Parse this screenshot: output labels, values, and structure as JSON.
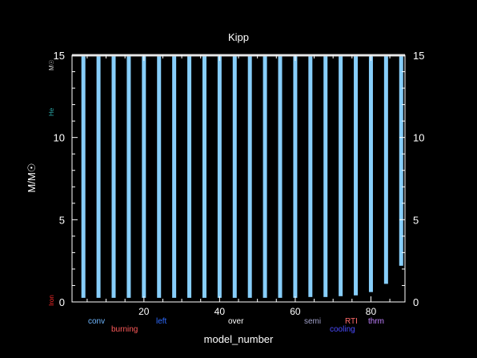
{
  "chart_data": {
    "type": "bar",
    "title": "Kipp",
    "xlabel": "model_number",
    "ylabel": "M/M☉",
    "xlim": [
      1,
      89
    ],
    "ylim": [
      0,
      15
    ],
    "x_ticks": [
      20,
      40,
      60,
      80
    ],
    "y_ticks": [
      0,
      5,
      10,
      15
    ],
    "x": [
      4,
      8,
      12,
      16,
      20,
      24,
      28,
      32,
      36,
      40,
      44,
      48,
      52,
      56,
      60,
      64,
      68,
      72,
      76,
      80,
      84,
      88
    ],
    "bottoms": [
      0.25,
      0.25,
      0.25,
      0.25,
      0.25,
      0.25,
      0.25,
      0.25,
      0.25,
      0.25,
      0.25,
      0.25,
      0.25,
      0.25,
      0.25,
      0.3,
      0.3,
      0.35,
      0.4,
      0.6,
      1.1,
      2.2
    ],
    "top": 15,
    "colors": {
      "bar": "#87CEFA",
      "mass_line": "#d0d0d0",
      "conv": "#6fb7ff",
      "burning": "#ff5a5a",
      "left": "#2e6bff",
      "over": "#ffffff",
      "semi": "#a0a0c8",
      "rti": "#ff6a6a",
      "cooling": "#4b4bff",
      "thrm": "#c080ff",
      "he": "#2aa8a8",
      "iron": "#ff2a2a"
    }
  },
  "legend": {
    "conv": "conv",
    "burning": "burning",
    "left": "left",
    "over": "over",
    "semi": "semi",
    "rti": "RTI",
    "cooling": "cooling",
    "thrm": "thrm"
  },
  "side_labels": {
    "he": "He",
    "iron": "Iron",
    "top": "M☉"
  }
}
